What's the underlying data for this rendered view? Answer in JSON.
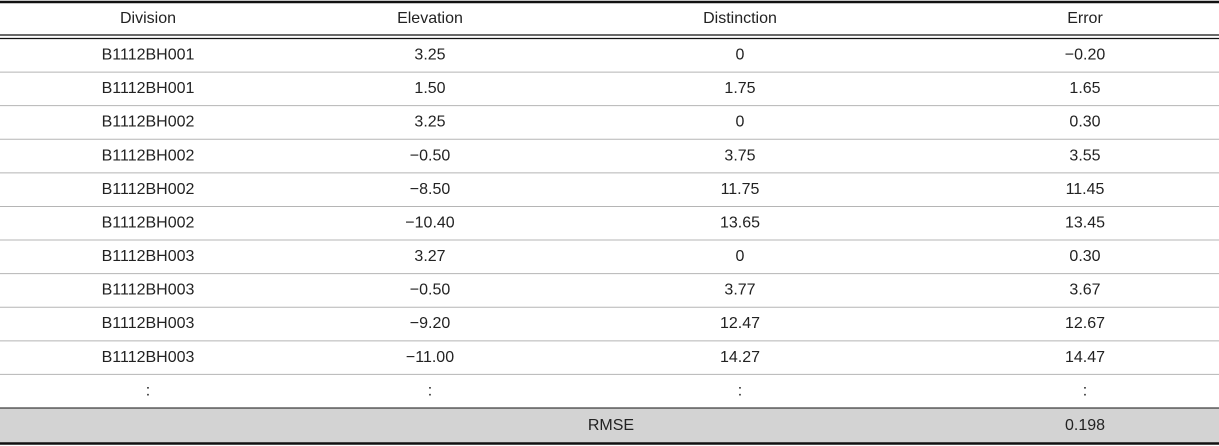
{
  "table": {
    "header": [
      "Division",
      "Elevation",
      "Distinction",
      "Error"
    ],
    "rows": [
      [
        "B1112BH001",
        "3.25",
        "0",
        "−0.20"
      ],
      [
        "B1112BH001",
        "1.50",
        "1.75",
        "1.65"
      ],
      [
        "B1112BH002",
        "3.25",
        "0",
        "0.30"
      ],
      [
        "B1112BH002",
        "−0.50",
        "3.75",
        "3.55"
      ],
      [
        "B1112BH002",
        "−8.50",
        "11.75",
        "11.45"
      ],
      [
        "B1112BH002",
        "−10.40",
        "13.65",
        "13.45"
      ],
      [
        "B1112BH003",
        "3.27",
        "0",
        "0.30"
      ],
      [
        "B1112BH003",
        "−0.50",
        "3.77",
        "3.67"
      ],
      [
        "B1112BH003",
        "−9.20",
        "12.47",
        "12.67"
      ],
      [
        "B1112BH003",
        "−11.00",
        "14.27",
        "14.47"
      ],
      [
        ":",
        ":",
        ":",
        ":"
      ]
    ],
    "footer": {
      "label": "RMSE",
      "value": "0.198"
    }
  }
}
